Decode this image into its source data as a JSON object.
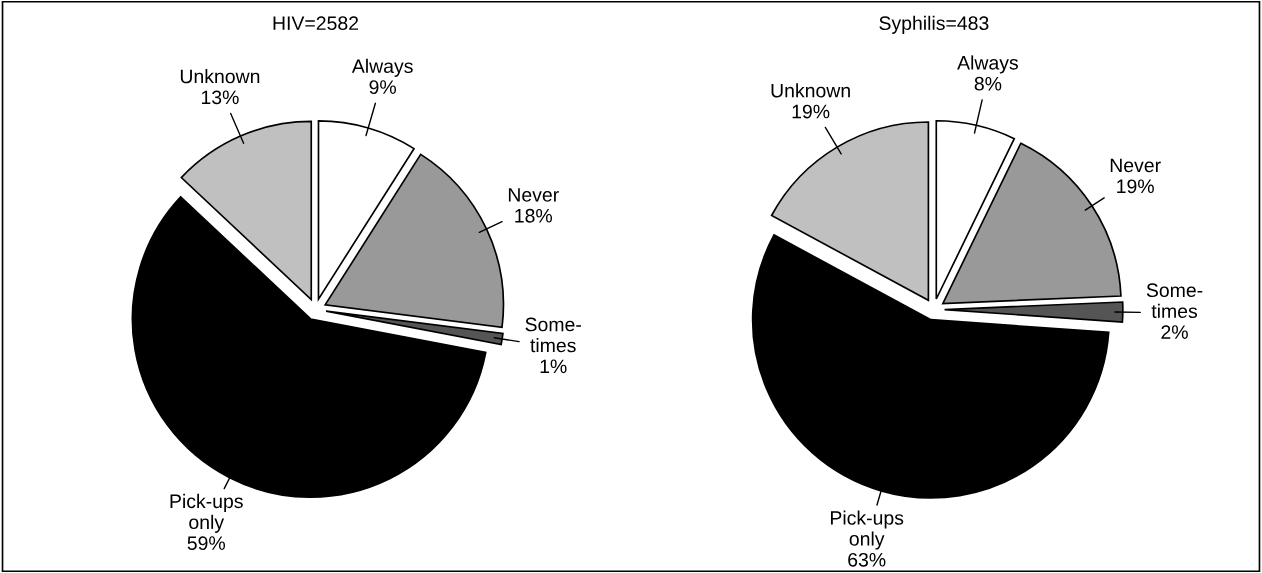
{
  "chart_data": [
    {
      "type": "pie",
      "title": "HIV=2582",
      "categories": [
        "Always",
        "Never",
        "Some-\ntimes",
        "Pick-ups\nonly",
        "Unknown"
      ],
      "values": [
        9,
        18,
        1,
        59,
        13
      ],
      "value_labels": [
        "9%",
        "18%",
        "1%",
        "59%",
        "13%"
      ],
      "colors": [
        "#ffffff",
        "#999999",
        "#555555",
        "#000000",
        "#c0c0c0"
      ]
    },
    {
      "type": "pie",
      "title": "Syphilis=483",
      "categories": [
        "Always",
        "Never",
        "Some-\ntimes",
        "Pick-ups\nonly",
        "Unknown"
      ],
      "values": [
        8,
        19,
        2,
        63,
        19
      ],
      "value_labels": [
        "8%",
        "19%",
        "2%",
        "63%",
        "19%"
      ],
      "colors": [
        "#ffffff",
        "#999999",
        "#555555",
        "#000000",
        "#c0c0c0"
      ]
    }
  ]
}
